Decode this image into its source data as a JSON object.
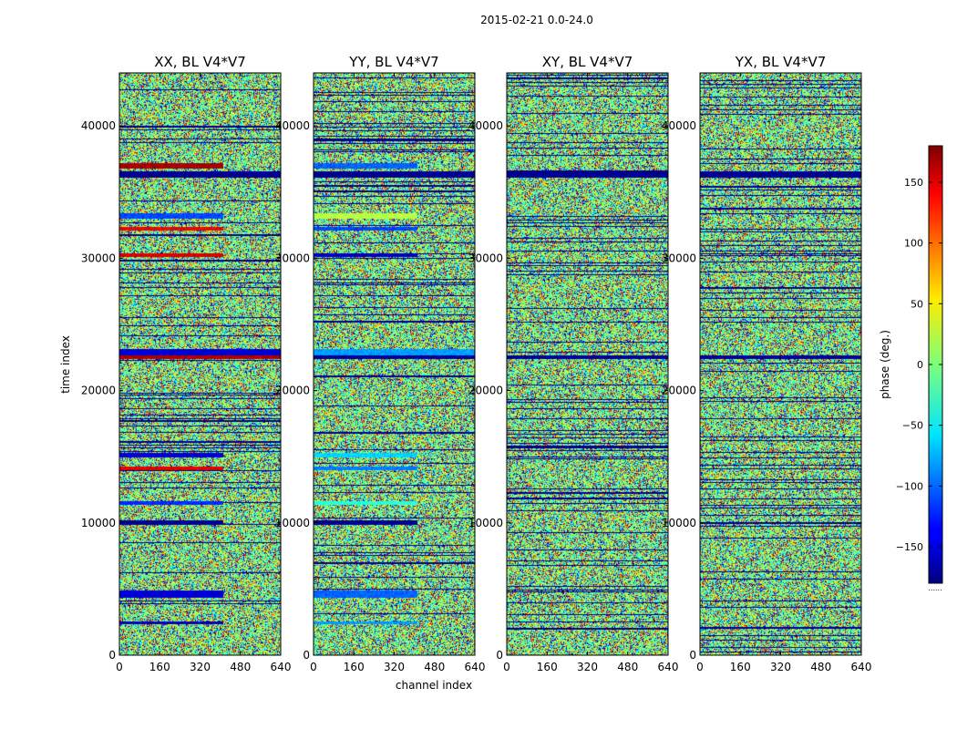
{
  "suptitle": "2015-02-21 0.0-24.0",
  "chart_data": {
    "type": "heatmap",
    "xlabel": "channel index",
    "ylabel": "time index",
    "x_range": [
      0,
      640
    ],
    "y_range": [
      0,
      44000
    ],
    "x_ticks": [
      0,
      160,
      320,
      480,
      640
    ],
    "y_ticks": [
      0,
      10000,
      20000,
      30000,
      40000
    ],
    "panels": [
      {
        "title": "XX, BL V4*V7",
        "coherent_bands": [
          {
            "y": [
              36800,
              37200
            ],
            "x": [
              0,
              410
            ],
            "phase": 165
          },
          {
            "y": [
              36100,
              36600
            ],
            "x": [
              0,
              640
            ],
            "phase": -175
          },
          {
            "y": [
              33000,
              33400
            ],
            "x": [
              0,
              410
            ],
            "phase": -110
          },
          {
            "y": [
              32100,
              32400
            ],
            "x": [
              0,
              410
            ],
            "phase": 140
          },
          {
            "y": [
              30100,
              30400
            ],
            "x": [
              0,
              410
            ],
            "phase": 150
          },
          {
            "y": [
              22700,
              23200
            ],
            "x": [
              0,
              640
            ],
            "phase": -150
          },
          {
            "y": [
              22400,
              22700
            ],
            "x": [
              0,
              640
            ],
            "phase": 165
          },
          {
            "y": [
              15000,
              15300
            ],
            "x": [
              0,
              410
            ],
            "phase": -150
          },
          {
            "y": [
              14000,
              14300
            ],
            "x": [
              0,
              410
            ],
            "phase": 145
          },
          {
            "y": [
              11400,
              11700
            ],
            "x": [
              0,
              410
            ],
            "phase": -120
          },
          {
            "y": [
              9900,
              10200
            ],
            "x": [
              0,
              410
            ],
            "phase": -175
          },
          {
            "y": [
              4400,
              4900
            ],
            "x": [
              0,
              410
            ],
            "phase": -150
          },
          {
            "y": [
              2400,
              2600
            ],
            "x": [
              0,
              410
            ],
            "phase": -160
          }
        ]
      },
      {
        "title": "YY, BL V4*V7",
        "coherent_bands": [
          {
            "y": [
              36800,
              37200
            ],
            "x": [
              0,
              410
            ],
            "phase": -100
          },
          {
            "y": [
              36100,
              36600
            ],
            "x": [
              0,
              640
            ],
            "phase": -175
          },
          {
            "y": [
              33000,
              33400
            ],
            "x": [
              0,
              410
            ],
            "phase": 20
          },
          {
            "y": [
              32100,
              32400
            ],
            "x": [
              0,
              410
            ],
            "phase": -110
          },
          {
            "y": [
              30100,
              30400
            ],
            "x": [
              0,
              410
            ],
            "phase": -160
          },
          {
            "y": [
              22700,
              23200
            ],
            "x": [
              0,
              640
            ],
            "phase": -80
          },
          {
            "y": [
              22400,
              22700
            ],
            "x": [
              0,
              640
            ],
            "phase": -175
          },
          {
            "y": [
              15000,
              15300
            ],
            "x": [
              0,
              410
            ],
            "phase": -60
          },
          {
            "y": [
              14000,
              14300
            ],
            "x": [
              0,
              410
            ],
            "phase": -90
          },
          {
            "y": [
              11400,
              11700
            ],
            "x": [
              0,
              410
            ],
            "phase": -30
          },
          {
            "y": [
              9900,
              10200
            ],
            "x": [
              0,
              410
            ],
            "phase": -175
          },
          {
            "y": [
              4400,
              4900
            ],
            "x": [
              0,
              410
            ],
            "phase": -100
          },
          {
            "y": [
              2400,
              2600
            ],
            "x": [
              0,
              410
            ],
            "phase": -80
          }
        ]
      },
      {
        "title": "XY, BL V4*V7",
        "coherent_bands": [
          {
            "y": [
              36100,
              36600
            ],
            "x": [
              0,
              640
            ],
            "phase": -175
          },
          {
            "y": [
              22400,
              22700
            ],
            "x": [
              0,
              640
            ],
            "phase": -175
          }
        ]
      },
      {
        "title": "YX, BL V4*V7",
        "coherent_bands": [
          {
            "y": [
              36100,
              36600
            ],
            "x": [
              0,
              640
            ],
            "phase": -175
          },
          {
            "y": [
              22400,
              22700
            ],
            "x": [
              0,
              640
            ],
            "phase": -175
          }
        ]
      }
    ],
    "colorbar": {
      "label": "phase (deg.)",
      "range": [
        -180,
        180
      ],
      "ticks": [
        -150,
        -100,
        -50,
        0,
        50,
        100,
        150
      ],
      "tick_labels": [
        "−150",
        "−100",
        "−50",
        "0",
        "50",
        "100",
        "150"
      ],
      "colormap": "jet",
      "footnote": "......"
    }
  }
}
